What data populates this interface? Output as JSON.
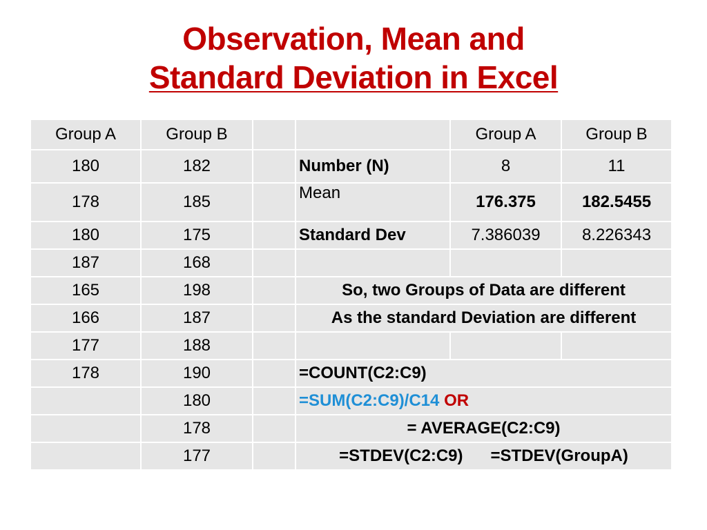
{
  "slide": {
    "title_line1": "Observation, Mean and",
    "title_line2": "Standard Deviation in Excel"
  },
  "columns": {
    "a": "Group A",
    "b": "Group B"
  },
  "group_a": [
    "180",
    "178",
    "180",
    "187",
    "165",
    "166",
    "177",
    "178",
    "",
    "",
    ""
  ],
  "group_b": [
    "182",
    "185",
    "175",
    "168",
    "198",
    "187",
    "188",
    "190",
    "180",
    "178",
    "177"
  ],
  "stats": {
    "head_a": "Group A",
    "head_b": "Group B",
    "number_label": "Number (N)",
    "n_a": "8",
    "n_b": "11",
    "mean_label": "Mean",
    "mean_a": "176.375",
    "mean_b": "182.5455",
    "sd_label": "Standard Dev",
    "sd_a": "7.386039",
    "sd_b": "8.226343"
  },
  "conclusion": {
    "line1": "So, two Groups of Data are different",
    "line2": "As the standard Deviation are different"
  },
  "formulas": {
    "count": "=COUNT(C2:C9)",
    "sum": "=SUM(C2:C9)/C14",
    "or": "OR",
    "average": "= AVERAGE(C2:C9)",
    "stdev_range": "=STDEV(C2:C9)",
    "stdev_name": "=STDEV(GroupA)"
  },
  "colors": {
    "title": "#c00000",
    "header_green": "#00a651",
    "red": "#c00000",
    "blue": "#1f8fd6",
    "cell_bg": "#e6e6e6"
  }
}
